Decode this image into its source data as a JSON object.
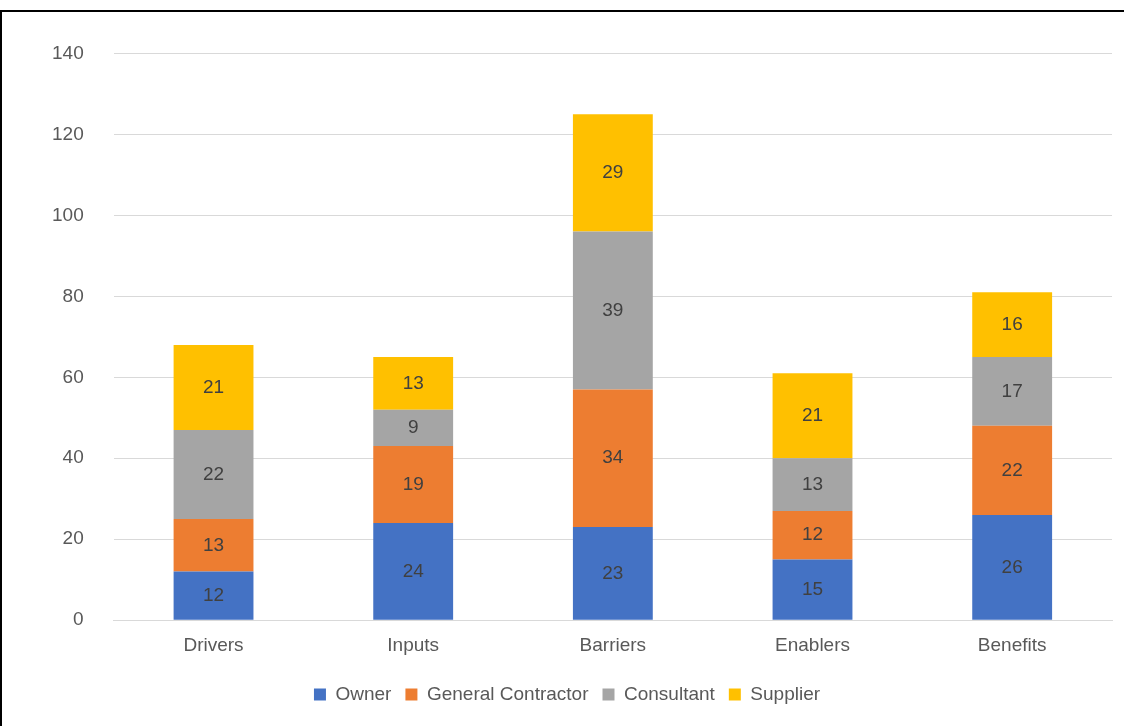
{
  "chart_data": {
    "type": "bar",
    "stacked": true,
    "categories": [
      "Drivers",
      "Inputs",
      "Barriers",
      "Enablers",
      "Benefits"
    ],
    "series": [
      {
        "name": "Owner",
        "color": "#4472c4",
        "values": [
          12,
          24,
          23,
          15,
          26
        ]
      },
      {
        "name": "General Contractor",
        "color": "#ed7d31",
        "values": [
          13,
          19,
          34,
          12,
          22
        ]
      },
      {
        "name": "Consultant",
        "color": "#a5a5a5",
        "values": [
          22,
          9,
          39,
          13,
          17
        ]
      },
      {
        "name": "Supplier",
        "color": "#ffc000",
        "values": [
          21,
          13,
          29,
          21,
          16
        ]
      }
    ],
    "ylim": [
      0,
      140
    ],
    "yticks": [
      0,
      20,
      40,
      60,
      80,
      100,
      120,
      140
    ],
    "grid": "y",
    "legend": "bottom",
    "data_labels": true
  }
}
